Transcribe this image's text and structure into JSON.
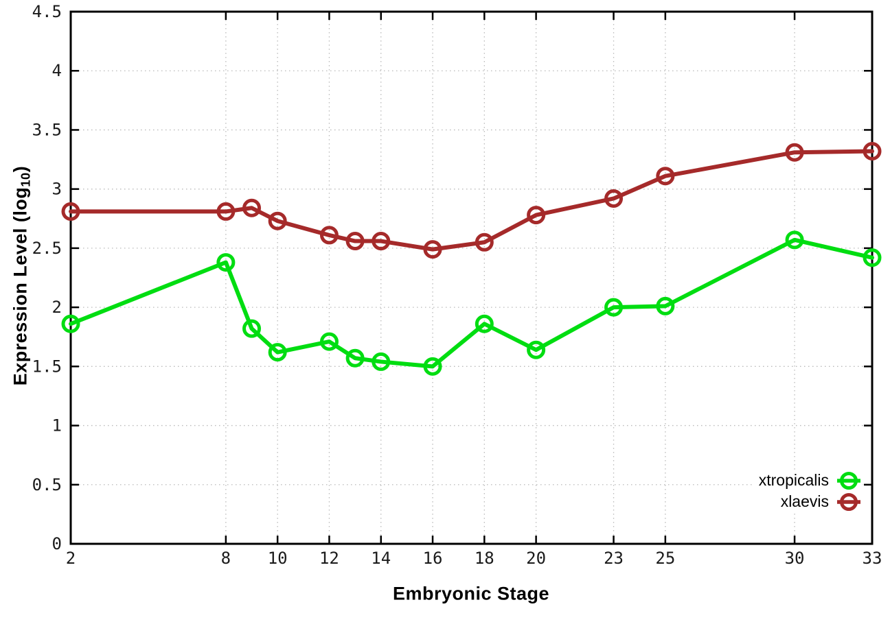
{
  "figure": {
    "xlabel": "Embryonic Stage",
    "ylabel_prefix": "Expression Level (log",
    "ylabel_sub": "10",
    "ylabel_suffix": ")"
  },
  "chart_data": {
    "type": "line",
    "title": "",
    "xlabel": "Embryonic Stage",
    "ylabel": "Expression Level (log10)",
    "xlim": [
      2,
      33
    ],
    "ylim": [
      0,
      4.5
    ],
    "grid": true,
    "legend_position": "inside bottom-right",
    "x": [
      2,
      8,
      9,
      10,
      12,
      13,
      14,
      16,
      18,
      20,
      23,
      25,
      30,
      33
    ],
    "xticks": [
      2,
      8,
      10,
      12,
      14,
      16,
      18,
      20,
      23,
      25,
      30,
      33
    ],
    "yticks": [
      0,
      0.5,
      1,
      1.5,
      2,
      2.5,
      3,
      3.5,
      4,
      4.5
    ],
    "series": [
      {
        "name": "xtropicalis",
        "color": "#00dd11",
        "marker": "open-circle",
        "values": [
          1.86,
          2.38,
          1.82,
          1.62,
          1.71,
          1.57,
          1.54,
          1.5,
          1.86,
          1.64,
          2.0,
          2.01,
          2.57,
          2.42
        ]
      },
      {
        "name": "xlaevis",
        "color": "#a52a2a",
        "marker": "open-circle",
        "values": [
          2.81,
          2.81,
          2.84,
          2.73,
          2.61,
          2.56,
          2.56,
          2.49,
          2.55,
          2.78,
          2.92,
          3.11,
          3.31,
          3.32
        ]
      }
    ]
  }
}
